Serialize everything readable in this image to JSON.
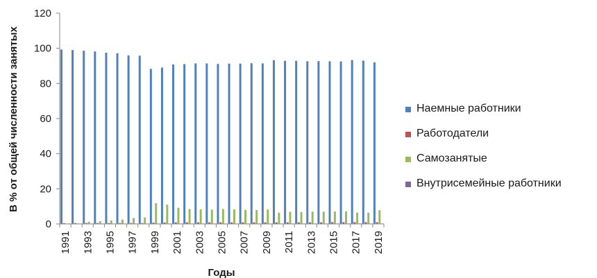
{
  "chart_data": {
    "type": "bar",
    "title": "",
    "xlabel": "Годы",
    "ylabel": "В % от общей численности занятых",
    "ylim": [
      0,
      120
    ],
    "yticks": [
      0,
      20,
      40,
      60,
      80,
      100,
      120
    ],
    "grid": false,
    "legend_position": "right",
    "categories": [
      "1991",
      "1992",
      "1993",
      "1994",
      "1995",
      "1996",
      "1997",
      "1998",
      "1999",
      "2000",
      "2001",
      "2002",
      "2003",
      "2004",
      "2005",
      "2006",
      "2007",
      "2008",
      "2009",
      "2010",
      "2011",
      "2012",
      "2013",
      "2014",
      "2015",
      "2016",
      "2017",
      "2018",
      "2019"
    ],
    "xtick_labels": [
      "1991",
      "1993",
      "1995",
      "1997",
      "1999",
      "2001",
      "2003",
      "2005",
      "2007",
      "2009",
      "2011",
      "2013",
      "2015",
      "2017",
      "2019"
    ],
    "series": [
      {
        "name": "Наемные работники",
        "color": "#4f81bd",
        "values": [
          99.3,
          99.0,
          98.6,
          98.2,
          97.5,
          97.2,
          96.0,
          95.8,
          88.3,
          89.0,
          90.8,
          91.0,
          91.4,
          91.4,
          91.1,
          91.3,
          91.3,
          91.5,
          91.4,
          93.2,
          92.9,
          92.9,
          92.6,
          92.7,
          92.6,
          92.5,
          93.3,
          93.0,
          92.0
        ]
      },
      {
        "name": "Работодатели",
        "color": "#c0504d",
        "values": [
          0.5,
          0.5,
          0.5,
          0.5,
          0.5,
          0.5,
          0.5,
          0.5,
          0.7,
          0.8,
          0.9,
          0.9,
          0.9,
          0.9,
          0.9,
          0.9,
          0.9,
          0.9,
          0.9,
          0.9,
          0.9,
          0.9,
          0.9,
          0.9,
          1.0,
          1.0,
          1.0,
          1.0,
          1.0
        ]
      },
      {
        "name": "Самозанятые",
        "color": "#9bbb59",
        "values": [
          0.2,
          0.3,
          1.2,
          1.6,
          2.0,
          2.5,
          3.4,
          3.7,
          11.8,
          11.0,
          9.2,
          8.5,
          8.3,
          8.1,
          8.5,
          8.3,
          8.0,
          7.9,
          8.2,
          6.4,
          6.9,
          6.8,
          7.0,
          7.0,
          7.1,
          7.2,
          6.4,
          6.4,
          7.8
        ]
      },
      {
        "name": "Внутрисемейные работники",
        "color": "#8064a2",
        "values": [
          0.05,
          0.05,
          0.05,
          0.05,
          0.05,
          0.05,
          0.05,
          0.05,
          0.1,
          0.1,
          0.1,
          0.1,
          0.1,
          0.1,
          0.1,
          0.1,
          0.1,
          0.1,
          0.1,
          0.1,
          0.1,
          0.1,
          0.1,
          0.1,
          0.1,
          0.1,
          0.1,
          0.1,
          0.1
        ]
      }
    ]
  }
}
